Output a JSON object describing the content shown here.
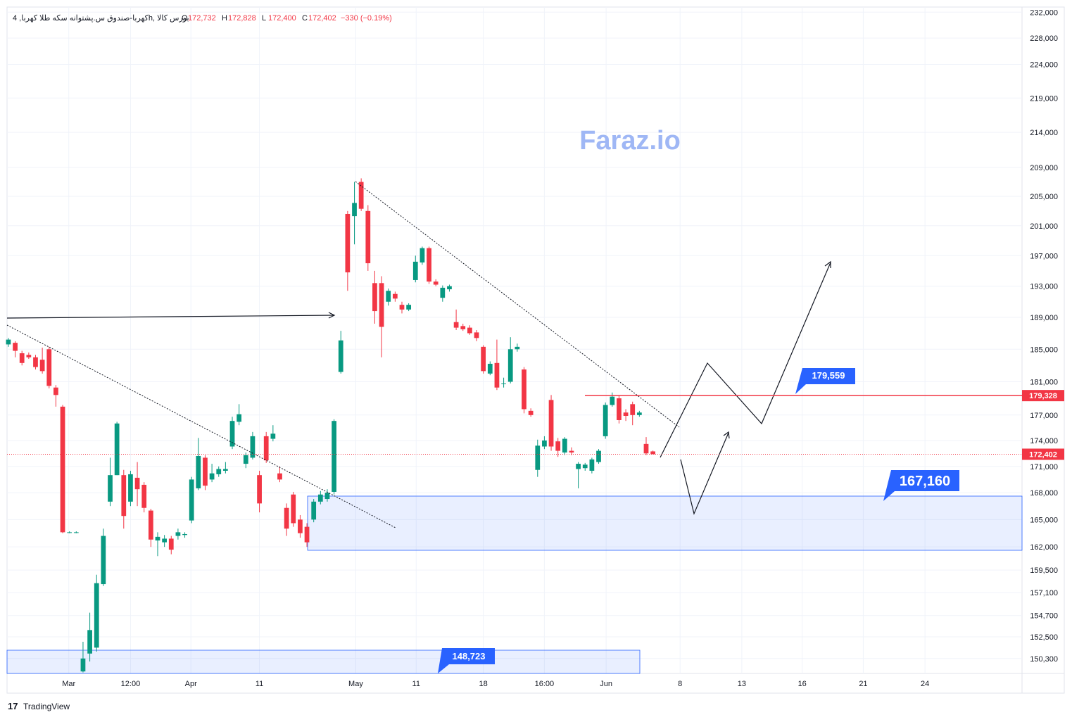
{
  "chart_data": {
    "type": "candlestick",
    "symbol": "کهربا-صندوق س.پشتوانه سکه طلا کهربا, 4h, بورس کالا",
    "ohlc_header": [
      {
        "key": "O",
        "value": "172,732"
      },
      {
        "key": "H",
        "value": "172,828"
      },
      {
        "key": "L",
        "value": "172,400"
      },
      {
        "key": "C",
        "value": "172,402"
      }
    ],
    "change": "−330 (−0.19%)",
    "watermark": "Faraz.io",
    "brand": "TradingView",
    "log_scale": true,
    "grid": true,
    "up_color": "#089981",
    "down_color": "#f23645",
    "ylim": [
      148800,
      232800
    ],
    "yticks": [
      {
        "value": 232000,
        "label": "232,000"
      },
      {
        "value": 228000,
        "label": "228,000"
      },
      {
        "value": 224000,
        "label": "224,000"
      },
      {
        "value": 219000,
        "label": "219,000"
      },
      {
        "value": 214000,
        "label": "214,000"
      },
      {
        "value": 209000,
        "label": "209,000"
      },
      {
        "value": 205000,
        "label": "205,000"
      },
      {
        "value": 201000,
        "label": "201,000"
      },
      {
        "value": 197000,
        "label": "197,000"
      },
      {
        "value": 193000,
        "label": "193,000"
      },
      {
        "value": 189000,
        "label": "189,000"
      },
      {
        "value": 185000,
        "label": "185,000"
      },
      {
        "value": 181000,
        "label": "181,000"
      },
      {
        "value": 177000,
        "label": "177,000"
      },
      {
        "value": 174000,
        "label": "174,000"
      },
      {
        "value": 171000,
        "label": "171,000"
      },
      {
        "value": 168000,
        "label": "168,000"
      },
      {
        "value": 165000,
        "label": "165,000"
      },
      {
        "value": 162000,
        "label": "162,000"
      },
      {
        "value": 159500,
        "label": "159,500"
      },
      {
        "value": 157100,
        "label": "157,100"
      },
      {
        "value": 154700,
        "label": "154,700"
      },
      {
        "value": 152500,
        "label": "152,500"
      },
      {
        "value": 150300,
        "label": "150,300"
      }
    ],
    "xlim": [
      0.8,
      150.4
    ],
    "xticks": [
      {
        "value": 9.9,
        "label": "Mar"
      },
      {
        "value": 19,
        "label": "12:00"
      },
      {
        "value": 27.9,
        "label": "Apr"
      },
      {
        "value": 38,
        "label": "11"
      },
      {
        "value": 52.2,
        "label": "May"
      },
      {
        "value": 61.1,
        "label": "11"
      },
      {
        "value": 71,
        "label": "18"
      },
      {
        "value": 80,
        "label": "16:00"
      },
      {
        "value": 89.1,
        "label": "Jun"
      },
      {
        "value": 100,
        "label": "8"
      },
      {
        "value": 109.1,
        "label": "13"
      },
      {
        "value": 118,
        "label": "16"
      },
      {
        "value": 127,
        "label": "21"
      },
      {
        "value": 136.1,
        "label": "24"
      }
    ],
    "x": [
      0,
      1,
      2,
      3,
      4,
      5,
      6,
      7,
      8,
      9,
      10,
      11,
      12,
      13,
      14,
      15,
      16,
      17,
      18,
      19,
      20,
      21,
      22,
      23,
      24,
      25,
      26,
      27,
      28,
      29,
      30,
      31,
      32,
      33,
      34,
      35,
      36,
      37,
      38,
      39,
      40,
      41,
      42,
      43,
      44,
      45,
      46,
      47,
      48,
      49,
      50,
      51,
      52,
      53,
      54,
      55,
      56,
      57,
      58,
      59,
      60,
      61,
      62,
      63,
      64,
      65,
      66,
      67,
      68,
      69,
      70,
      71,
      72,
      73,
      74,
      75,
      76,
      77,
      78,
      79,
      80,
      81,
      82,
      83,
      84,
      85,
      86,
      87,
      88,
      89,
      90,
      91,
      92,
      93,
      94,
      95,
      96
    ],
    "open": [
      185500,
      185600,
      185800,
      184500,
      184300,
      184000,
      183700,
      185000,
      180300,
      178000,
      163600,
      163600,
      149000,
      150800,
      151400,
      158000,
      167000,
      170000,
      170000,
      167000,
      169700,
      168900,
      166000,
      162700,
      162500,
      162900,
      163200,
      163300,
      164900,
      168500,
      172000,
      169500,
      170100,
      170500,
      173300,
      176200,
      171300,
      172000,
      170000,
      174500,
      174200,
      170200,
      166300,
      167800,
      165000,
      164200,
      165000,
      167000,
      167300,
      168100,
      182200,
      202600,
      202300,
      207000,
      203000,
      193400,
      193400,
      191000,
      192000,
      190600,
      190000,
      193800,
      196100,
      198000,
      193600,
      191500,
      192600,
      188400,
      187900,
      187700,
      187100,
      185300,
      182000,
      183300,
      180800,
      181000,
      185000,
      182500,
      177500,
      170600,
      173300,
      178800,
      173900,
      172600,
      172800,
      170700,
      170800,
      170500,
      171500,
      174500,
      178200,
      179000,
      177300,
      178300,
      177000,
      173600,
      172732
    ],
    "high": [
      186000,
      186400,
      186000,
      184800,
      184600,
      184300,
      185200,
      185300,
      180600,
      178200,
      163700,
      163700,
      152000,
      155000,
      159000,
      164000,
      172000,
      176200,
      170600,
      170500,
      171500,
      169200,
      166200,
      163600,
      163300,
      163200,
      164000,
      163600,
      169800,
      174300,
      172300,
      171300,
      171000,
      171500,
      176800,
      178300,
      172600,
      175000,
      170500,
      175000,
      175800,
      171000,
      166800,
      168100,
      165500,
      164600,
      167300,
      168200,
      168400,
      176500,
      187300,
      203000,
      207000,
      207500,
      203800,
      195000,
      194300,
      192700,
      192300,
      191000,
      190800,
      197000,
      198200,
      198200,
      193900,
      193100,
      193200,
      190000,
      188200,
      188000,
      187400,
      185500,
      183500,
      186200,
      181500,
      186500,
      185700,
      182800,
      177800,
      174100,
      174500,
      179400,
      174300,
      174400,
      173200,
      171500,
      171400,
      172000,
      173000,
      178500,
      179700,
      179300,
      177700,
      178600,
      177500,
      174400,
      172828
    ],
    "low": [
      184500,
      185300,
      184000,
      183000,
      183800,
      182500,
      182000,
      180200,
      178000,
      163500,
      163500,
      163500,
      148900,
      150000,
      151000,
      157800,
      166500,
      170000,
      164000,
      166500,
      166500,
      165800,
      162000,
      161000,
      162000,
      161200,
      162800,
      163000,
      164600,
      168300,
      168300,
      169200,
      169800,
      170200,
      173000,
      175800,
      170800,
      171800,
      165800,
      171400,
      173900,
      169200,
      163200,
      164200,
      163000,
      162000,
      164700,
      166700,
      167000,
      167800,
      182000,
      192400,
      198500,
      203000,
      195000,
      188200,
      184000,
      190500,
      191000,
      189500,
      189800,
      193500,
      195800,
      193300,
      193000,
      191000,
      192300,
      187400,
      187300,
      186800,
      186000,
      182000,
      181800,
      180000,
      180300,
      180800,
      184700,
      177200,
      176800,
      169800,
      173000,
      172800,
      172100,
      172300,
      172300,
      168500,
      170500,
      170200,
      171300,
      174200,
      178000,
      176000,
      176300,
      175800,
      176800,
      172300,
      172400
    ],
    "close": [
      185000,
      186200,
      184800,
      183300,
      184000,
      182800,
      182300,
      180500,
      179400,
      163600,
      163600,
      163600,
      150300,
      153200,
      158100,
      163200,
      170000,
      176000,
      165400,
      170100,
      168400,
      166300,
      162800,
      163100,
      162900,
      161700,
      163600,
      163400,
      169500,
      172200,
      168800,
      170200,
      170700,
      170700,
      176300,
      177100,
      172300,
      174500,
      166800,
      171700,
      174800,
      169500,
      164000,
      164600,
      163500,
      162500,
      167000,
      167800,
      168000,
      176300,
      186100,
      194800,
      204100,
      203300,
      196000,
      189800,
      187800,
      192400,
      191400,
      190000,
      190600,
      196200,
      198000,
      193600,
      193200,
      192800,
      193000,
      187700,
      187500,
      187000,
      186400,
      182300,
      183200,
      180300,
      180800,
      185000,
      185300,
      177700,
      177000,
      173400,
      174000,
      173300,
      172800,
      174200,
      172600,
      171300,
      171200,
      171800,
      172800,
      178200,
      179200,
      176400,
      176900,
      177000,
      177300,
      172500,
      172402
    ],
    "resistance": {
      "value": 179328,
      "label": "179,328",
      "color": "#f23645"
    },
    "last_price": {
      "value": 172402,
      "label": "172,402"
    },
    "callouts": [
      {
        "value": 179559,
        "label": "179,559"
      },
      {
        "value": 167160,
        "label": "167,160"
      },
      {
        "value": 148723,
        "label": "148,723"
      }
    ]
  }
}
